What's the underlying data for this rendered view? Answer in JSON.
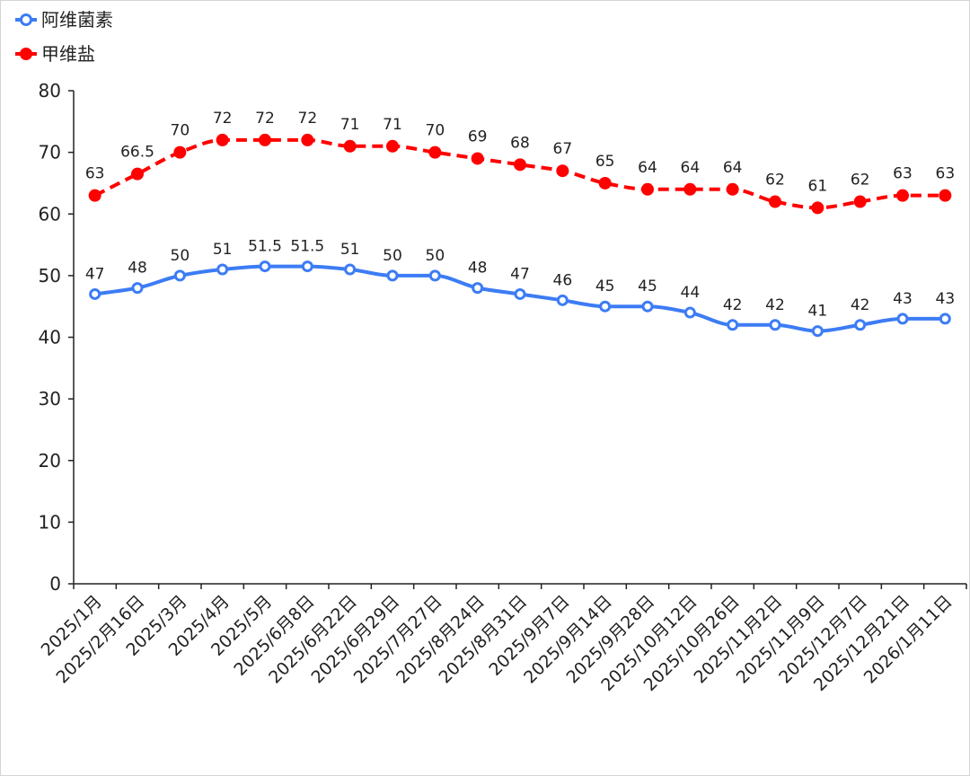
{
  "chart_data": {
    "type": "line",
    "categories": [
      "2025/1月",
      "2025/2月16日",
      "2025/3月",
      "2025/4月",
      "2025/5月",
      "2025/6月8日",
      "2025/6月22日",
      "2025/6月29日",
      "2025/7月27日",
      "2025/8月24日",
      "2025/8月31日",
      "2025/9月7日",
      "2025/9月14日",
      "2025/9月28日",
      "2025/10月12日",
      "2025/10月26日",
      "2025/11月2日",
      "2025/11月9日",
      "2025/12月7日",
      "2025/12月21日",
      "2026/1月11日"
    ],
    "series": [
      {
        "name": "阿维菌素",
        "values": [
          47,
          48,
          50,
          51,
          51.5,
          51.5,
          51,
          50,
          50,
          48,
          47,
          46,
          45,
          45,
          44,
          42,
          42,
          41,
          42,
          43,
          43
        ],
        "color": "#3c7cf5",
        "line_style": "solid",
        "marker": "hollow-circle"
      },
      {
        "name": "甲维盐",
        "values": [
          63,
          66.5,
          70,
          72,
          72,
          72,
          71,
          71,
          70,
          69,
          68,
          67,
          65,
          64,
          64,
          64,
          62,
          61,
          62,
          63,
          63
        ],
        "color": "#ff0000",
        "line_style": "dashed",
        "marker": "filled-circle"
      }
    ],
    "ylim": [
      0,
      80
    ],
    "yticks": [
      0,
      10,
      20,
      30,
      40,
      50,
      60,
      70,
      80
    ],
    "smooth": true,
    "data_labels": true,
    "grid": false,
    "legend": "top-left"
  }
}
